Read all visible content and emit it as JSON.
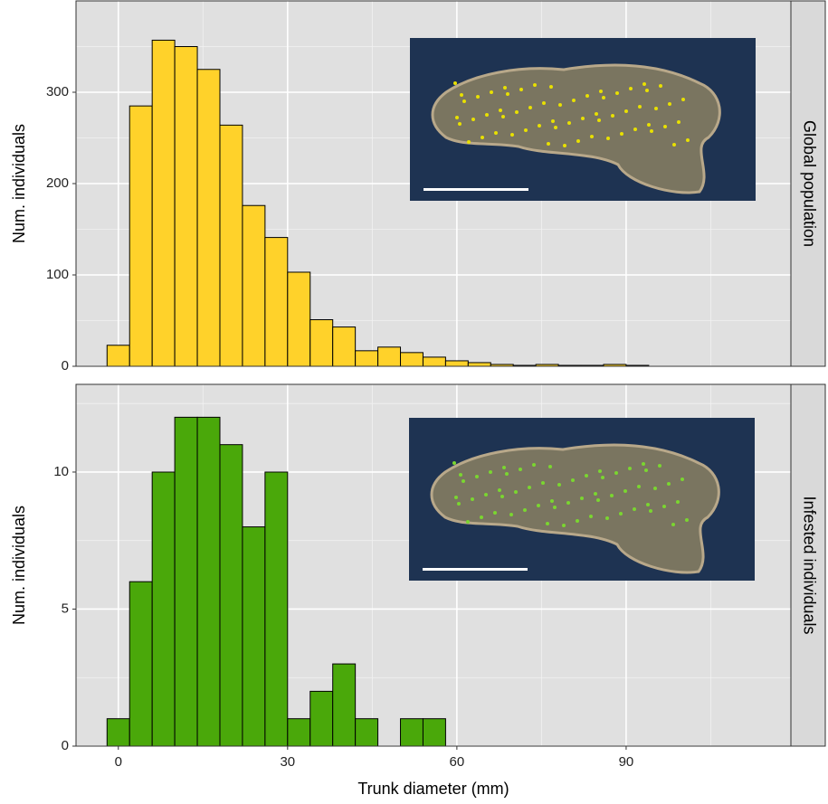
{
  "chart_data": [
    {
      "type": "histogram",
      "facet_label": "Global population",
      "ylabel": "Num. individuals",
      "color": "#ffd22a",
      "bins": [
        -2,
        2,
        6,
        10,
        14,
        18,
        22,
        26,
        30,
        34,
        38,
        42,
        46,
        50,
        54,
        58,
        62,
        66,
        70,
        74,
        78,
        82,
        86,
        90,
        94,
        98,
        102,
        106,
        110,
        114
      ],
      "values": [
        23,
        285,
        357,
        350,
        325,
        264,
        176,
        141,
        103,
        51,
        43,
        17,
        21,
        15,
        10,
        6,
        4,
        2,
        1,
        2,
        1,
        1,
        2,
        1,
        0,
        0,
        0,
        0,
        0
      ],
      "xlim": [
        -7.5,
        119.2
      ],
      "xticks": [
        0,
        30,
        60,
        90
      ],
      "xminor": [
        15,
        45,
        75,
        105
      ],
      "ylim": [
        0,
        400
      ],
      "yticks": [
        0,
        100,
        200,
        300
      ],
      "yminor": [
        50,
        150,
        250,
        350
      ],
      "grid": true
    },
    {
      "type": "histogram",
      "facet_label": "Infested individuals",
      "ylabel": "Num. individuals",
      "xlabel": "Trunk diameter (mm)",
      "color": "#4aa80a",
      "bins": [
        -2,
        2,
        6,
        10,
        14,
        18,
        22,
        26,
        30,
        34,
        38,
        42,
        46,
        50,
        54,
        58,
        62,
        66,
        70,
        74,
        78,
        82,
        86,
        90,
        94,
        98,
        102,
        106,
        110,
        114
      ],
      "values": [
        1,
        6,
        10,
        12,
        12,
        11,
        8,
        10,
        1,
        2,
        3,
        1,
        0,
        1,
        1,
        0,
        0,
        0,
        0,
        0,
        0,
        0,
        0,
        0,
        0,
        0,
        0,
        0,
        0
      ],
      "xlim": [
        -7.5,
        119.2
      ],
      "xticks": [
        0,
        30,
        60,
        90
      ],
      "xminor": [
        15,
        45,
        75,
        105
      ],
      "ylim": [
        0,
        13.2
      ],
      "yticks": [
        0,
        5,
        10
      ],
      "yminor": [
        2.5,
        7.5,
        12.5
      ],
      "grid": true
    }
  ]
}
